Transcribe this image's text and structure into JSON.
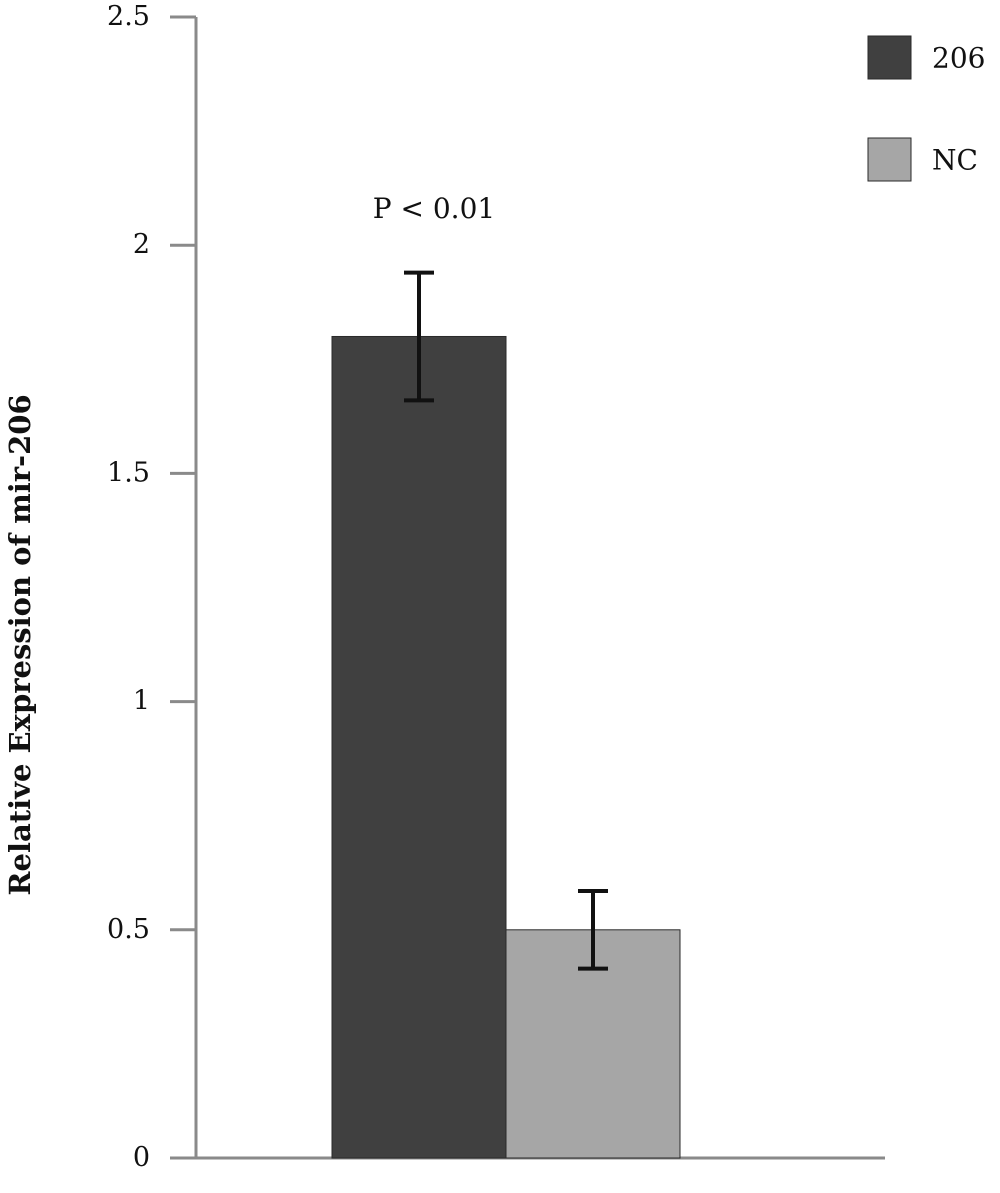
{
  "chart_data": {
    "type": "bar",
    "title": "",
    "xlabel": "",
    "ylabel": "Relative Expression of mir-206",
    "ylim": [
      0,
      2.5
    ],
    "yticks": [
      "0",
      "0.5",
      "1",
      "1.5",
      "2",
      "2.5"
    ],
    "grid": false,
    "legend_position": "top-right",
    "series": [
      {
        "name": "206",
        "value": 1.8,
        "error": 0.14,
        "color": "#404040"
      },
      {
        "name": "NC",
        "value": 0.5,
        "error": 0.085,
        "color": "#a6a6a6"
      }
    ],
    "annotations": [
      {
        "text": "P < 0.01",
        "attached_to": "206"
      }
    ]
  }
}
